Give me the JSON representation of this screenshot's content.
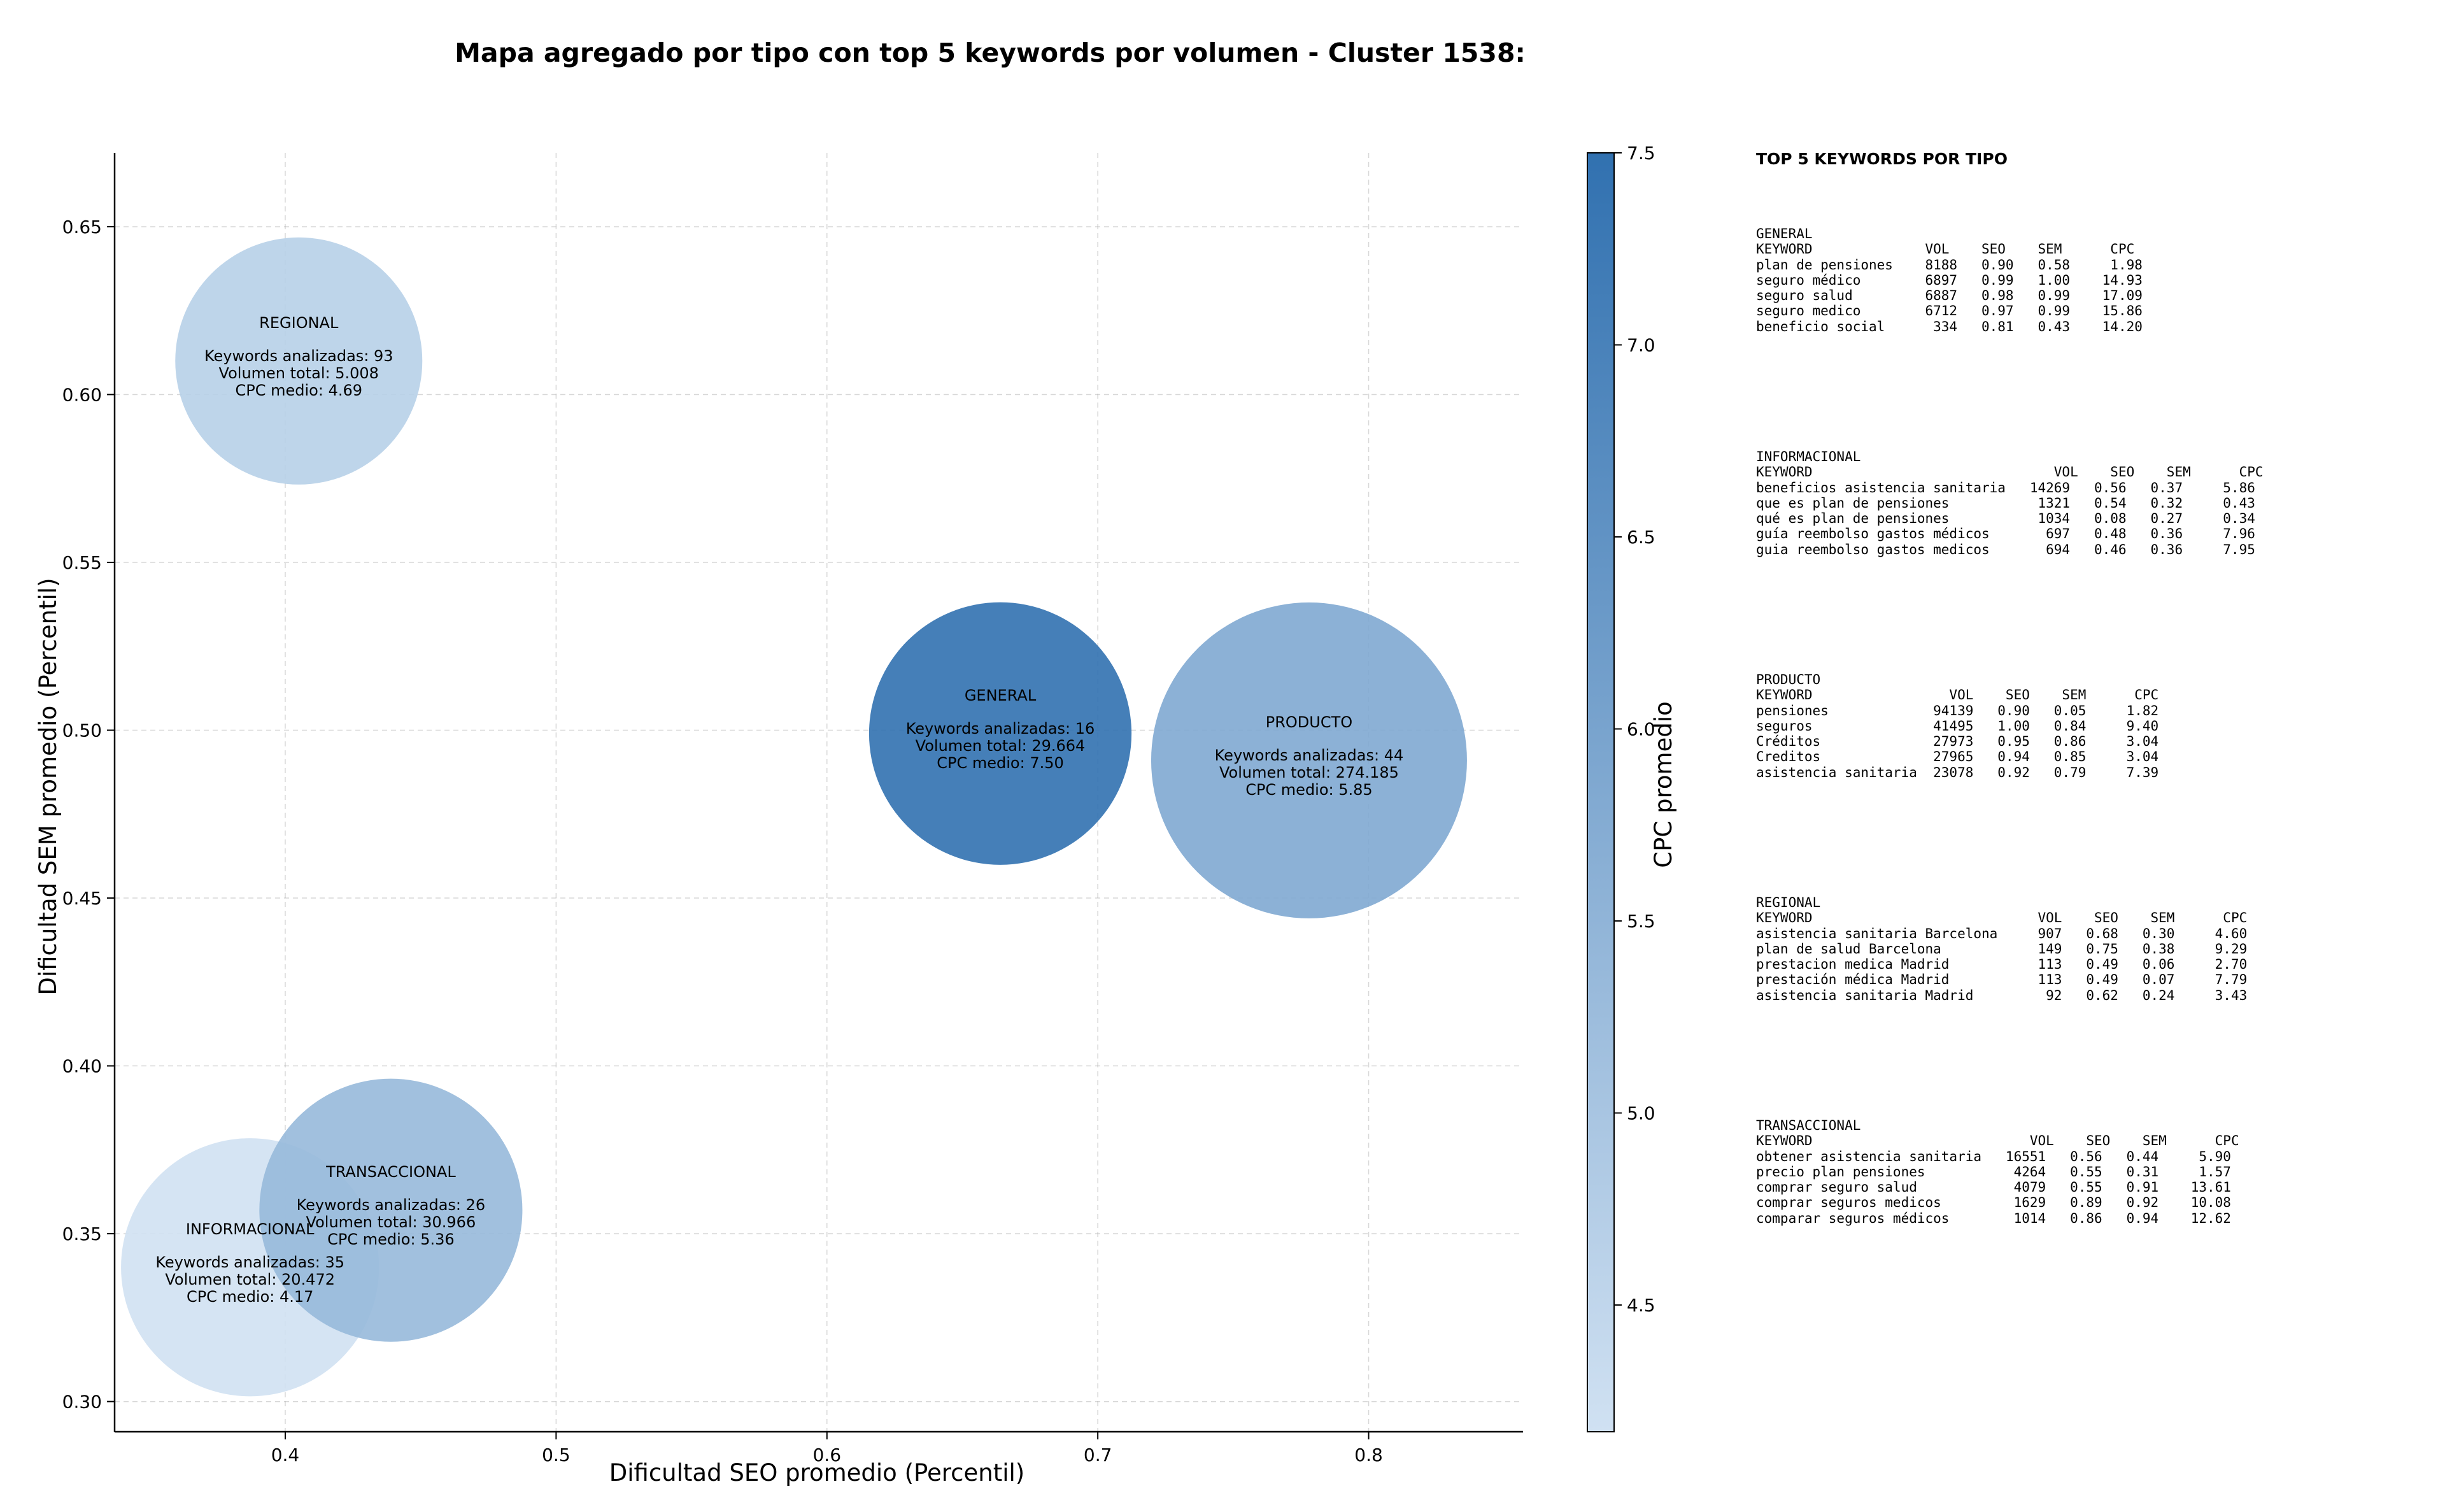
{
  "chart_data": {
    "type": "scatter",
    "title": "Mapa agregado por tipo con top 5 keywords por volumen - Cluster 1538:",
    "xlabel": "Dificultad SEO promedio (Percentil)",
    "ylabel": "Dificultad SEM promedio (Percentil)",
    "xlim": [
      0.337,
      0.857
    ],
    "ylim": [
      0.291,
      0.672
    ],
    "xticks": [
      "0.4",
      "0.5",
      "0.6",
      "0.7",
      "0.8"
    ],
    "yticks": [
      "0.30",
      "0.35",
      "0.40",
      "0.45",
      "0.50",
      "0.55",
      "0.60",
      "0.65"
    ],
    "grid": true,
    "colorbar": {
      "label": "CPC promedio",
      "min": 4.17,
      "max": 7.5,
      "ticks": [
        "4.5",
        "5.0",
        "5.5",
        "6.0",
        "6.5",
        "7.0",
        "7.5"
      ],
      "color_low": "#d0e1f2",
      "color_high": "#3171b0"
    },
    "points": [
      {
        "type": "REGIONAL",
        "x": 0.405,
        "y": 0.61,
        "volume": 5008,
        "cpc": 4.69,
        "lines": [
          "Keywords analizadas: 93",
          "Volumen total: 5.008",
          "CPC medio: 4.69"
        ]
      },
      {
        "type": "GENERAL",
        "x": 0.664,
        "y": 0.499,
        "volume": 29664,
        "cpc": 7.5,
        "lines": [
          "Keywords analizadas: 16",
          "Volumen total: 29.664",
          "CPC medio: 7.50"
        ]
      },
      {
        "type": "PRODUCTO",
        "x": 0.778,
        "y": 0.491,
        "volume": 274185,
        "cpc": 5.85,
        "lines": [
          "Keywords analizadas: 44",
          "Volumen total: 274.185",
          "CPC medio: 5.85"
        ]
      },
      {
        "type": "INFORMACIONAL",
        "x": 0.387,
        "y": 0.34,
        "volume": 20472,
        "cpc": 4.17,
        "lines": [
          "Keywords analizadas: 35",
          "Volumen total: 20.472",
          "CPC medio: 4.17"
        ]
      },
      {
        "type": "TRANSACCIONAL",
        "x": 0.439,
        "y": 0.357,
        "volume": 30966,
        "cpc": 5.36,
        "lines": [
          "Keywords analizadas: 26",
          "Volumen total: 30.966",
          "CPC medio: 5.36"
        ]
      }
    ]
  },
  "side_panel": {
    "title": "TOP 5 KEYWORDS POR TIPO",
    "blocks": [
      {
        "name": "GENERAL",
        "header": "KEYWORD              VOL    SEO    SEM      CPC",
        "rows": [
          "plan de pensiones    8188   0.90   0.58     1.98",
          "seguro médico        6897   0.99   1.00    14.93",
          "seguro salud         6887   0.98   0.99    17.09",
          "seguro medico        6712   0.97   0.99    15.86",
          "beneficio social      334   0.81   0.43    14.20"
        ]
      },
      {
        "name": "INFORMACIONAL",
        "header": "KEYWORD                              VOL    SEO    SEM      CPC",
        "rows": [
          "beneficios asistencia sanitaria   14269   0.56   0.37     5.86",
          "que es plan de pensiones           1321   0.54   0.32     0.43",
          "qué es plan de pensiones           1034   0.08   0.27     0.34",
          "guía reembolso gastos médicos       697   0.48   0.36     7.96",
          "guia reembolso gastos medicos       694   0.46   0.36     7.95"
        ]
      },
      {
        "name": "PRODUCTO",
        "header": "KEYWORD                 VOL    SEO    SEM      CPC",
        "rows": [
          "pensiones             94139   0.90   0.05     1.82",
          "seguros               41495   1.00   0.84     9.40",
          "Créditos              27973   0.95   0.86     3.04",
          "Creditos              27965   0.94   0.85     3.04",
          "asistencia sanitaria  23078   0.92   0.79     7.39"
        ]
      },
      {
        "name": "REGIONAL",
        "header": "KEYWORD                            VOL    SEO    SEM      CPC",
        "rows": [
          "asistencia sanitaria Barcelona     907   0.68   0.30     4.60",
          "plan de salud Barcelona            149   0.75   0.38     9.29",
          "prestacion medica Madrid           113   0.49   0.06     2.70",
          "prestación médica Madrid           113   0.49   0.07     7.79",
          "asistencia sanitaria Madrid         92   0.62   0.24     3.43"
        ]
      },
      {
        "name": "TRANSACCIONAL",
        "header": "KEYWORD                           VOL    SEO    SEM      CPC",
        "rows": [
          "obtener asistencia sanitaria   16551   0.56   0.44     5.90",
          "precio plan pensiones           4264   0.55   0.31     1.57",
          "comprar seguro salud            4079   0.55   0.91    13.61",
          "comprar seguros medicos         1629   0.89   0.92    10.08",
          "comparar seguros médicos        1014   0.86   0.94    12.62"
        ]
      }
    ]
  }
}
